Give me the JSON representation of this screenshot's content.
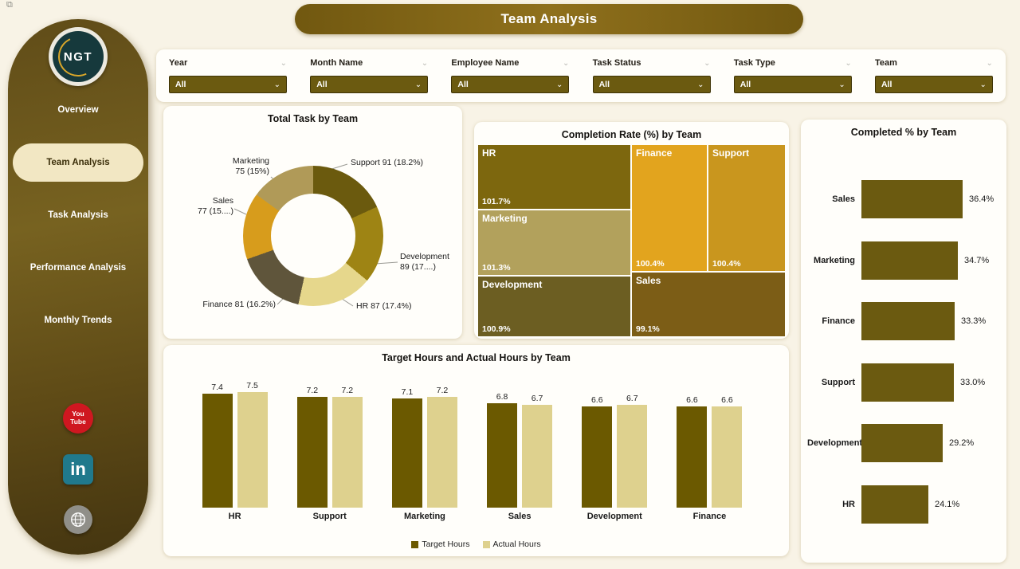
{
  "theme": {
    "accent": "#6b5a10",
    "page-bg": "#f8f3e6",
    "header-grad-1": "#715810",
    "header-grad-2": "#8f701c",
    "active-item-bg": "#f2e7c3",
    "active-item-text": "#3a2d08",
    "youtube": "#cf1720",
    "linkedin": "#20798c",
    "globe-gray": "#908f89"
  },
  "corner": {
    "icon": "⧉"
  },
  "header": {
    "title": "Team Analysis"
  },
  "sidebar": {
    "logo": {
      "text": "NGT"
    },
    "items": [
      {
        "id": "overview",
        "label": "Overview",
        "active": false
      },
      {
        "id": "team-analysis",
        "label": "Team Analysis",
        "active": true
      },
      {
        "id": "task-analysis",
        "label": "Task Analysis",
        "active": false
      },
      {
        "id": "performance-analysis",
        "label": "Performance Analysis",
        "active": false
      },
      {
        "id": "monthly-trends",
        "label": "Monthly Trends",
        "active": false
      }
    ],
    "social": [
      {
        "id": "youtube",
        "line1": "You",
        "line2": "Tube"
      },
      {
        "id": "linkedin",
        "label": "in"
      },
      {
        "id": "website"
      }
    ]
  },
  "filters": [
    {
      "id": "year",
      "label": "Year",
      "value": "All"
    },
    {
      "id": "month-name",
      "label": "Month Name",
      "value": "All"
    },
    {
      "id": "employee-name",
      "label": "Employee Name",
      "value": "All"
    },
    {
      "id": "task-status",
      "label": "Task Status",
      "value": "All"
    },
    {
      "id": "task-type",
      "label": "Task Type",
      "value": "All"
    },
    {
      "id": "team",
      "label": "Team",
      "value": "All"
    }
  ],
  "chart_data": [
    {
      "type": "pie",
      "subtype": "donut",
      "title": "Total Task by Team",
      "categories": [
        "Support",
        "Development",
        "HR",
        "Finance",
        "Sales",
        "Marketing"
      ],
      "values": [
        91,
        89,
        87,
        81,
        77,
        75
      ],
      "point_labels": [
        [
          "Support 91 (18.2%)"
        ],
        [
          "Development",
          "89 (17....)"
        ],
        [
          "HR 87 (17.4%)"
        ],
        [
          "Finance 81 (16.2%)"
        ],
        [
          "Sales",
          "77 (15....)"
        ],
        [
          "Marketing",
          "75 (15%)"
        ]
      ],
      "colors": [
        "#6b5a0e",
        "#9e8414",
        "#e6d78c",
        "#5f553b",
        "#d79c1c",
        "#b09a58"
      ]
    },
    {
      "type": "treemap",
      "title": "Completion Rate (%) by Team",
      "categories": [
        "HR",
        "Marketing",
        "Development",
        "Finance",
        "Support",
        "Sales"
      ],
      "values": [
        101.7,
        101.3,
        100.9,
        100.4,
        100.4,
        99.1
      ],
      "value_labels": [
        "101.7%",
        "101.3%",
        "100.9%",
        "100.4%",
        "100.4%",
        "99.1%"
      ],
      "colors": [
        "#7d670e",
        "#b2a15c",
        "#6c5e22",
        "#e2a41e",
        "#c9961e",
        "#7c5d16"
      ]
    },
    {
      "type": "bar",
      "title": "Target Hours and Actual Hours by Team",
      "categories": [
        "HR",
        "Support",
        "Marketing",
        "Sales",
        "Development",
        "Finance"
      ],
      "series": [
        {
          "name": "Target Hours",
          "color": "#6b5900",
          "values": [
            7.4,
            7.2,
            7.1,
            6.8,
            6.6,
            6.6
          ]
        },
        {
          "name": "Actual Hours",
          "color": "#ded18e",
          "values": [
            7.5,
            7.2,
            7.2,
            6.7,
            6.7,
            6.6
          ]
        }
      ],
      "legend_position": "bottom"
    },
    {
      "type": "bar",
      "orientation": "horizontal",
      "title": "Completed % by Team",
      "categories": [
        "Sales",
        "Marketing",
        "Finance",
        "Support",
        "Development",
        "HR"
      ],
      "values": [
        36.4,
        34.7,
        33.3,
        33.0,
        29.2,
        24.1
      ],
      "value_labels": [
        "36.4%",
        "34.7%",
        "33.3%",
        "33.0%",
        "29.2%",
        "24.1%"
      ],
      "color": "#6b5a10"
    }
  ]
}
